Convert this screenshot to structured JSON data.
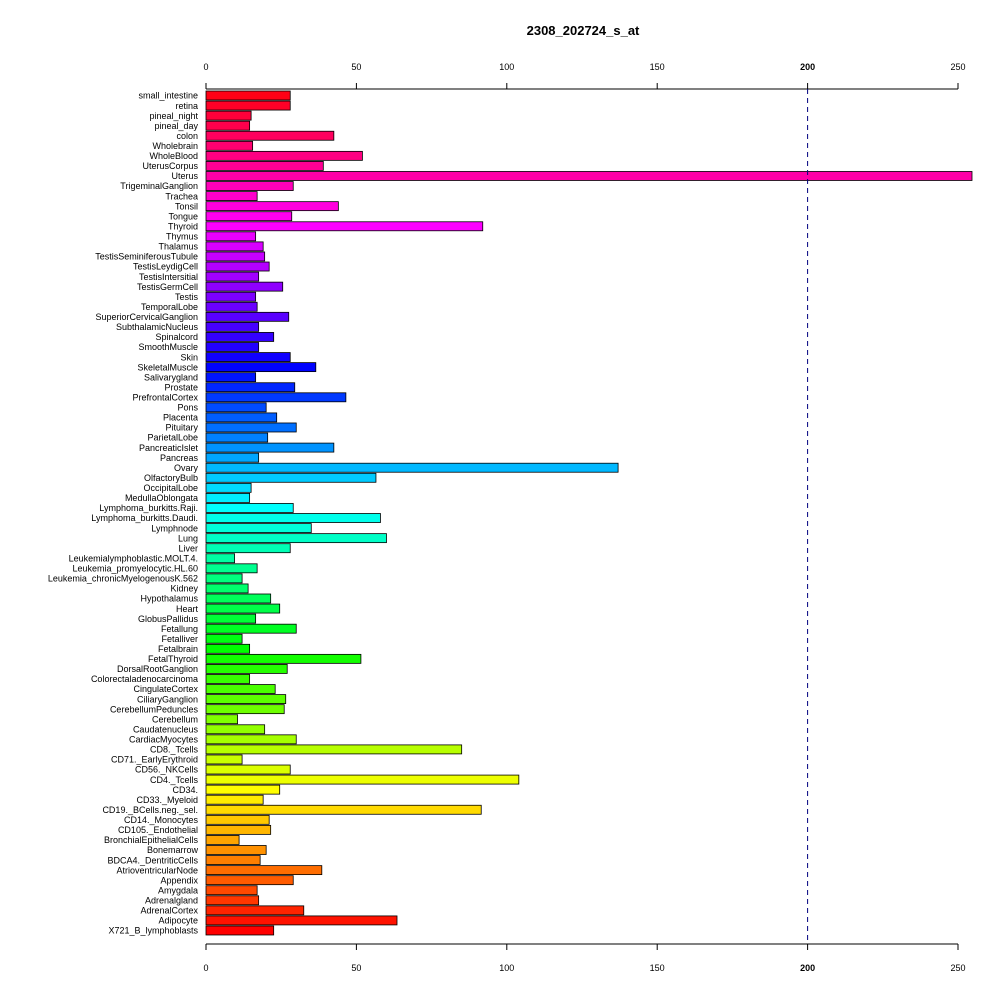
{
  "chart_data": {
    "type": "bar",
    "orientation": "horizontal",
    "title": "2308_202724_s_at",
    "xlabel": "",
    "ylabel": "",
    "xlim": [
      0,
      252
    ],
    "xticks": [
      0,
      50,
      100,
      150,
      200,
      250
    ],
    "xtick_labels": [
      "0",
      "50",
      "100",
      "150",
      "200",
      "250"
    ],
    "reference_line": {
      "value": 200,
      "style": "dashed",
      "color": "#000080"
    },
    "grid": false,
    "categories": [
      "small_intestine",
      "retina",
      "pineal_night",
      "pineal_day",
      "colon",
      "Wholebrain",
      "WholeBlood",
      "UterusCorpus",
      "Uterus",
      "TrigeminalGanglion",
      "Trachea",
      "Tonsil",
      "Tongue",
      "Thyroid",
      "Thymus",
      "Thalamus",
      "TestisSeminiferousTubule",
      "TestisLeydigCell",
      "TestisIntersitial",
      "TestisGermCell",
      "Testis",
      "TemporalLobe",
      "SuperiorCervicalGanglion",
      "SubthalamicNucleus",
      "Spinalcord",
      "SmoothMuscle",
      "Skin",
      "SkeletalMuscle",
      "Salivarygland",
      "Prostate",
      "PrefrontalCortex",
      "Pons",
      "Placenta",
      "Pituitary",
      "ParietalLobe",
      "PancreaticIslet",
      "Pancreas",
      "Ovary",
      "OlfactoryBulb",
      "OccipitalLobe",
      "MedullaOblongata",
      "Lymphoma_burkitts.Raji.",
      "Lymphoma_burkitts.Daudi.",
      "Lymphnode",
      "Lung",
      "Liver",
      "Leukemialymphoblastic.MOLT.4.",
      "Leukemia_promyelocytic.HL.60",
      "Leukemia_chronicMyelogenousK.562",
      "Kidney",
      "Hypothalamus",
      "Heart",
      "GlobusPallidus",
      "Fetallung",
      "Fetalliver",
      "Fetalbrain",
      "FetalThyroid",
      "DorsalRootGanglion",
      "Colorectaladenocarcinoma",
      "CingulateCortex",
      "CiliaryGanglion",
      "CerebellumPeduncles",
      "Cerebellum",
      "Caudatenucleus",
      "CardiacMyocytes",
      "CD8._Tcells",
      "CD71._EarlyErythroid",
      "CD56._NKCells",
      "CD4._Tcells",
      "CD34.",
      "CD33._Myeloid",
      "CD19._BCells.neg._sel.",
      "CD14._Monocytes",
      "CD105._Endothelial",
      "BronchialEpithelialCells",
      "Bonemarrow",
      "BDCA4._DentriticCells",
      "AtrioventricularNode",
      "Appendix",
      "Amygdala",
      "Adrenalgland",
      "AdrenalCortex",
      "Adipocyte",
      "X721_B_lymphoblasts"
    ],
    "values": [
      28,
      28,
      15,
      14.5,
      42.5,
      15.5,
      52,
      39,
      255,
      29,
      17,
      44,
      28.5,
      92,
      16.5,
      19,
      19.5,
      21,
      17.5,
      25.5,
      16.5,
      17,
      27.5,
      17.5,
      22.5,
      17.5,
      28,
      36.5,
      16.5,
      29.5,
      46.5,
      20,
      23.5,
      30,
      20.5,
      42.5,
      17.5,
      137,
      56.5,
      15,
      14.5,
      29,
      58,
      35,
      60,
      28,
      9.5,
      17,
      12,
      14,
      21.5,
      24.5,
      16.5,
      30,
      12,
      14.5,
      51.5,
      27,
      14.5,
      23,
      26.5,
      26,
      10.5,
      19.5,
      30,
      85,
      12,
      28,
      104,
      24.5,
      19,
      91.5,
      21,
      21.5,
      11,
      20,
      18,
      38.5,
      29,
      17,
      17.5,
      32.5,
      63.5,
      22.5
    ]
  }
}
